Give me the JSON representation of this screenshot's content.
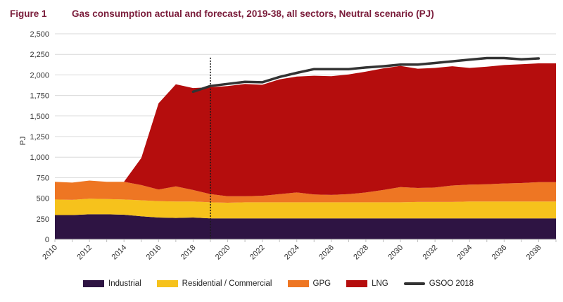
{
  "figure": {
    "label": "Figure 1",
    "title": "Gas consumption actual and forecast, 2019-38, all sectors, Neutral scenario (PJ)"
  },
  "colors": {
    "industrial": "#2e1443",
    "residential": "#f6c21c",
    "gpg": "#ee7623",
    "lng": "#b50d0d",
    "gsoo": "#333333",
    "grid": "#d9d9d9",
    "title": "#7a1c3a"
  },
  "chart_data": {
    "type": "area",
    "title": "Gas consumption actual and forecast, 2019-38, all sectors, Neutral scenario (PJ)",
    "xlabel": "",
    "ylabel": "PJ",
    "ylim": [
      0,
      2500
    ],
    "yticks": [
      0,
      250,
      500,
      750,
      1000,
      1250,
      1500,
      1750,
      2000,
      2250,
      2500
    ],
    "ytick_labels": [
      "0",
      "250",
      "500",
      "750",
      "1,000",
      "1,250",
      "1,500",
      "1,750",
      "2,000",
      "2,250",
      "2,500"
    ],
    "xlim": [
      2010,
      2039
    ],
    "xtick_labels": [
      "2010",
      "2012",
      "2014",
      "2016",
      "2018",
      "2020",
      "2022",
      "2024",
      "2026",
      "2028",
      "2030",
      "2032",
      "2034",
      "2036",
      "2038"
    ],
    "x": [
      2010,
      2011,
      2012,
      2013,
      2014,
      2015,
      2016,
      2017,
      2018,
      2019,
      2020,
      2021,
      2022,
      2023,
      2024,
      2025,
      2026,
      2027,
      2028,
      2029,
      2030,
      2031,
      2032,
      2033,
      2034,
      2035,
      2036,
      2037,
      2038,
      2039
    ],
    "forecast_start": 2019,
    "series": [
      {
        "name": "Industrial",
        "key": "industrial",
        "values": [
          295,
          295,
          305,
          305,
          300,
          280,
          265,
          260,
          265,
          255,
          255,
          255,
          255,
          255,
          255,
          255,
          255,
          255,
          255,
          255,
          255,
          255,
          255,
          255,
          255,
          255,
          255,
          255,
          255,
          255
        ]
      },
      {
        "name": "Residential / Commercial",
        "key": "residential",
        "values": [
          190,
          185,
          190,
          185,
          185,
          195,
          200,
          200,
          195,
          195,
          190,
          195,
          195,
          195,
          195,
          195,
          195,
          195,
          195,
          195,
          195,
          200,
          200,
          200,
          205,
          205,
          205,
          205,
          205,
          205
        ]
      },
      {
        "name": "GPG",
        "key": "gpg",
        "values": [
          215,
          210,
          220,
          210,
          215,
          185,
          140,
          185,
          140,
          100,
          80,
          75,
          80,
          100,
          120,
          95,
          90,
          100,
          120,
          150,
          185,
          170,
          175,
          200,
          205,
          210,
          220,
          225,
          235,
          235
        ]
      },
      {
        "name": "LNG",
        "key": "lng",
        "values": [
          0,
          0,
          0,
          0,
          0,
          330,
          1050,
          1240,
          1240,
          1300,
          1340,
          1365,
          1350,
          1395,
          1410,
          1445,
          1445,
          1455,
          1470,
          1480,
          1475,
          1450,
          1455,
          1450,
          1420,
          1430,
          1440,
          1445,
          1445,
          1445
        ]
      }
    ],
    "line_series": {
      "name": "GSOO 2018",
      "key": "gsoo",
      "x": [
        2018,
        2019,
        2020,
        2021,
        2022,
        2023,
        2024,
        2025,
        2026,
        2027,
        2028,
        2029,
        2030,
        2031,
        2032,
        2033,
        2034,
        2035,
        2036,
        2037,
        2038
      ],
      "values": [
        1795,
        1865,
        1890,
        1915,
        1910,
        1975,
        2025,
        2070,
        2070,
        2070,
        2090,
        2105,
        2125,
        2125,
        2145,
        2165,
        2185,
        2205,
        2205,
        2190,
        2200
      ]
    },
    "legend": [
      "Industrial",
      "Residential / Commercial",
      "GPG",
      "LNG",
      "GSOO 2018"
    ],
    "legend_position": "bottom"
  }
}
